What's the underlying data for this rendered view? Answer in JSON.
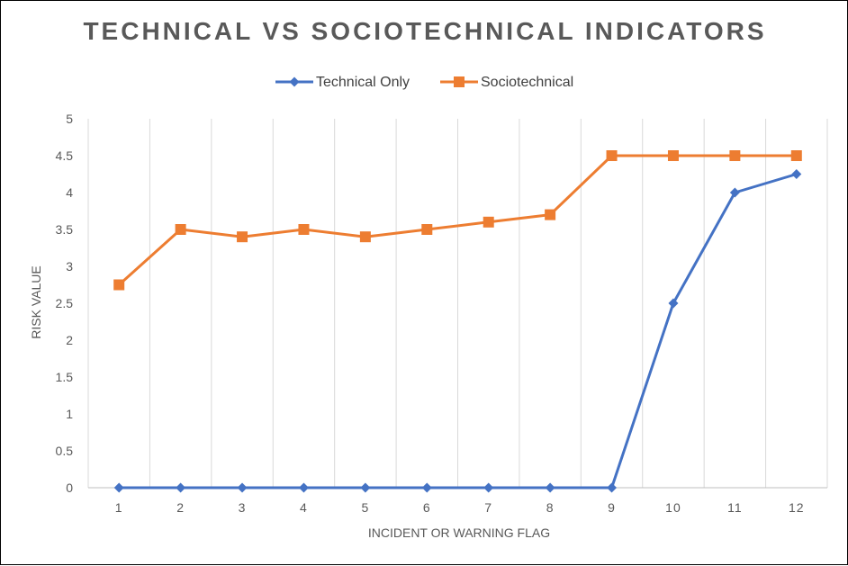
{
  "chart_data": {
    "type": "line",
    "title": "TECHNICAL VS SOCIOTECHNICAL INDICATORS",
    "xlabel": "INCIDENT OR WARNING FLAG",
    "ylabel": "RISK VALUE",
    "categories": [
      "1",
      "2",
      "3",
      "4",
      "5",
      "6",
      "7",
      "8",
      "9",
      "10",
      "11",
      "12"
    ],
    "yticks": [
      "0",
      "0.5",
      "1",
      "1.5",
      "2",
      "2.5",
      "3",
      "3.5",
      "4",
      "4.5",
      "5"
    ],
    "ylim": [
      0,
      5
    ],
    "grid": "vertical",
    "legend": "top-center",
    "series": [
      {
        "name": "Technical Only",
        "color": "#4472C4",
        "marker": "diamond",
        "values": [
          0,
          0,
          0,
          0,
          0,
          0,
          0,
          0,
          0,
          2.5,
          4,
          4.25
        ]
      },
      {
        "name": "Sociotechnical",
        "color": "#ED7D31",
        "marker": "square",
        "values": [
          2.75,
          3.5,
          3.4,
          3.5,
          3.4,
          3.5,
          3.6,
          3.7,
          4.5,
          4.5,
          4.5,
          4.5
        ]
      }
    ]
  }
}
